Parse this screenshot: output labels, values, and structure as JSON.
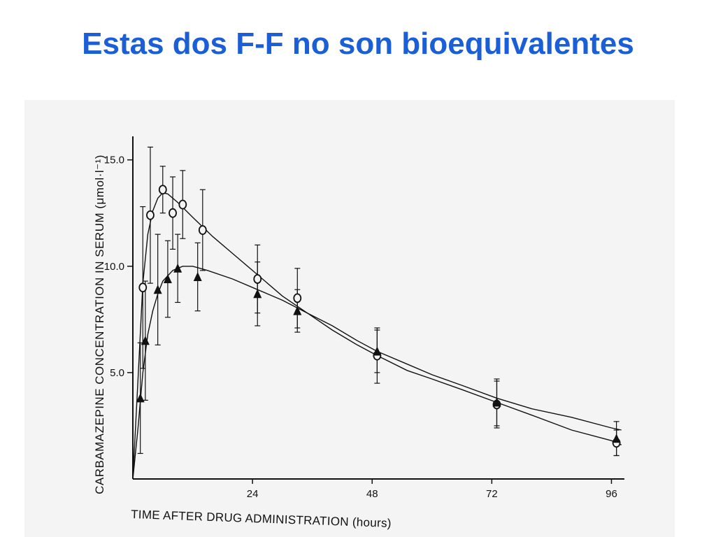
{
  "slide": {
    "title": "Estas dos F-F no son bioequivalentes"
  },
  "chart_data": {
    "type": "line",
    "ylabel": "CARBAMAZEPINE CONCENTRATION IN SERUM (μmol·l⁻¹)",
    "xlabel": "TIME AFTER DRUG ADMINISTRATION (hours)",
    "xlim": [
      0,
      100
    ],
    "ylim": [
      0,
      16.5
    ],
    "x_ticks": [
      24,
      48,
      72,
      96
    ],
    "x_tick_labels": [
      "24",
      "48",
      "72",
      "96"
    ],
    "y_ticks": [
      5.0,
      10.0,
      15.0
    ],
    "y_tick_labels": [
      "5.0",
      "10.0",
      "15.0"
    ],
    "grid": false,
    "series": [
      {
        "marker": "open-circle",
        "points": [
          {
            "x": 2,
            "y": 9.0,
            "err": 3.8
          },
          {
            "x": 3.5,
            "y": 12.4,
            "err": 3.2
          },
          {
            "x": 6,
            "y": 13.6,
            "err": 1.1
          },
          {
            "x": 8,
            "y": 12.5,
            "err": 1.7
          },
          {
            "x": 10,
            "y": 12.9,
            "err": 1.6
          },
          {
            "x": 14,
            "y": 11.7,
            "err": 1.9
          },
          {
            "x": 25,
            "y": 9.4,
            "err": 1.6
          },
          {
            "x": 33,
            "y": 8.5,
            "err": 1.4
          },
          {
            "x": 49,
            "y": 5.8,
            "err": 1.3
          },
          {
            "x": 73,
            "y": 3.5,
            "err": 1.1
          },
          {
            "x": 97,
            "y": 1.7,
            "err": 0.6
          }
        ],
        "curve": [
          [
            0,
            0
          ],
          [
            1,
            4.5
          ],
          [
            2,
            9.2
          ],
          [
            3,
            11.5
          ],
          [
            4,
            12.6
          ],
          [
            5,
            13.2
          ],
          [
            6,
            13.45
          ],
          [
            7,
            13.4
          ],
          [
            9,
            13.0
          ],
          [
            12,
            12.3
          ],
          [
            16,
            11.4
          ],
          [
            20,
            10.6
          ],
          [
            25,
            9.6
          ],
          [
            30,
            8.6
          ],
          [
            35,
            7.8
          ],
          [
            40,
            7.0
          ],
          [
            45,
            6.3
          ],
          [
            49,
            5.8
          ],
          [
            55,
            5.1
          ],
          [
            60,
            4.7
          ],
          [
            66,
            4.2
          ],
          [
            73,
            3.6
          ],
          [
            80,
            3.0
          ],
          [
            88,
            2.3
          ],
          [
            96,
            1.8
          ],
          [
            98,
            1.6
          ]
        ]
      },
      {
        "marker": "filled-triangle",
        "points": [
          {
            "x": 1.5,
            "y": 3.8,
            "err": 2.6
          },
          {
            "x": 2.5,
            "y": 6.5,
            "err": 2.8
          },
          {
            "x": 5,
            "y": 8.9,
            "err": 2.6
          },
          {
            "x": 7,
            "y": 9.4,
            "err": 1.8
          },
          {
            "x": 9,
            "y": 9.9,
            "err": 1.6
          },
          {
            "x": 13,
            "y": 9.5,
            "err": 1.6
          },
          {
            "x": 25,
            "y": 8.7,
            "err": 1.5
          },
          {
            "x": 33,
            "y": 7.9,
            "err": 1.0
          },
          {
            "x": 49,
            "y": 6.0,
            "err": 1.0
          },
          {
            "x": 73,
            "y": 3.6,
            "err": 1.1
          },
          {
            "x": 97,
            "y": 1.9,
            "err": 0.8
          }
        ],
        "curve": [
          [
            0,
            0
          ],
          [
            1,
            2.3
          ],
          [
            2,
            5.0
          ],
          [
            3,
            6.8
          ],
          [
            4,
            7.9
          ],
          [
            5,
            8.7
          ],
          [
            6,
            9.3
          ],
          [
            8,
            9.8
          ],
          [
            10,
            10.0
          ],
          [
            12,
            10.0
          ],
          [
            15,
            9.8
          ],
          [
            20,
            9.4
          ],
          [
            25,
            8.9
          ],
          [
            30,
            8.4
          ],
          [
            35,
            7.8
          ],
          [
            40,
            7.2
          ],
          [
            45,
            6.5
          ],
          [
            49,
            6.0
          ],
          [
            55,
            5.4
          ],
          [
            60,
            4.9
          ],
          [
            66,
            4.4
          ],
          [
            73,
            3.8
          ],
          [
            80,
            3.3
          ],
          [
            88,
            2.9
          ],
          [
            96,
            2.4
          ],
          [
            98,
            2.3
          ]
        ]
      }
    ]
  }
}
